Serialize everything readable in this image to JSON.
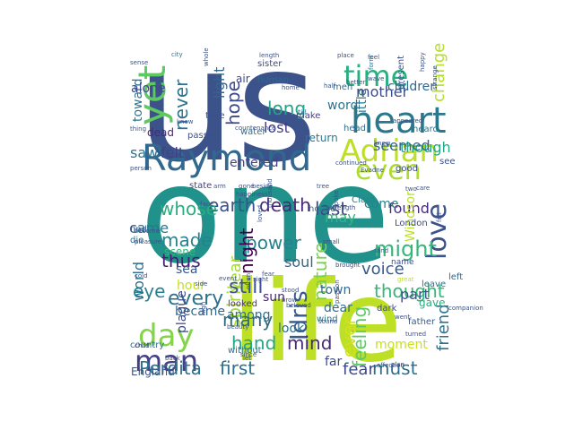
{
  "words": [
    {
      "text": "us",
      "color": "#3b528b"
    },
    {
      "text": "one",
      "color": "#21918c"
    },
    {
      "text": "life",
      "color": "#bddf26"
    },
    {
      "text": "Raymond",
      "color": "#31688e"
    },
    {
      "text": "heart",
      "color": "#2a788e"
    },
    {
      "text": "time",
      "color": "#29af7f"
    },
    {
      "text": "Adrian",
      "color": "#bddf26"
    },
    {
      "text": "even",
      "color": "#addc30"
    },
    {
      "text": "yet",
      "color": "#5ec962"
    },
    {
      "text": "love",
      "color": "#3b528b"
    },
    {
      "text": "day",
      "color": "#84d44b"
    },
    {
      "text": "man",
      "color": "#433e85"
    },
    {
      "text": "Perdita",
      "color": "#2c728e"
    },
    {
      "text": "first",
      "color": "#2c728e"
    },
    {
      "text": "death",
      "color": "#482878"
    },
    {
      "text": "earth",
      "color": "#3b528b"
    },
    {
      "text": "whose",
      "color": "#28ae80"
    },
    {
      "text": "last",
      "color": "#3e4a89"
    },
    {
      "text": "might",
      "color": "#35b779"
    },
    {
      "text": "thought",
      "color": "#35b779"
    },
    {
      "text": "hope",
      "color": "#3e4a89"
    },
    {
      "text": "long",
      "color": "#21a685"
    },
    {
      "text": "lost",
      "color": "#443983"
    },
    {
      "text": "mother",
      "color": "#3e4a89"
    },
    {
      "text": "word",
      "color": "#2c728e"
    },
    {
      "text": "never",
      "color": "#2c728e"
    },
    {
      "text": "light",
      "color": "#31688e"
    },
    {
      "text": "made",
      "color": "#26828e"
    },
    {
      "text": "thus",
      "color": "#481f70"
    },
    {
      "text": "power",
      "color": "#26828e"
    },
    {
      "text": "night",
      "color": "#440154"
    },
    {
      "text": "nature",
      "color": "#7ad151"
    },
    {
      "text": "spirit",
      "color": "#a8db34"
    },
    {
      "text": "year",
      "color": "#a8db34"
    },
    {
      "text": "still",
      "color": "#3b528b"
    },
    {
      "text": "every",
      "color": "#2c728e"
    },
    {
      "text": "eye",
      "color": "#26828e"
    },
    {
      "text": "world",
      "color": "#2c728e"
    },
    {
      "text": "Idris",
      "color": "#38598c"
    },
    {
      "text": "hand",
      "color": "#22a884"
    },
    {
      "text": "many",
      "color": "#30697e"
    },
    {
      "text": "mind",
      "color": "#482878"
    },
    {
      "text": "feeling",
      "color": "#5ec962"
    },
    {
      "text": "ever",
      "color": "#d2e21b"
    },
    {
      "text": "friend",
      "color": "#2c728e"
    },
    {
      "text": "must",
      "color": "#2e6e8e"
    },
    {
      "text": "fear",
      "color": "#3e4a89"
    },
    {
      "text": "voice",
      "color": "#38598c"
    },
    {
      "text": "part",
      "color": "#3b528b"
    },
    {
      "text": "came",
      "color": "#2a788e"
    },
    {
      "text": "saw",
      "color": "#2c728e"
    },
    {
      "text": "felt",
      "color": "#433e85"
    },
    {
      "text": "toward",
      "color": "#2c728e"
    },
    {
      "text": "alone",
      "color": "#3e4a89"
    },
    {
      "text": "children",
      "color": "#31688e"
    },
    {
      "text": "change",
      "color": "#b5de2b"
    },
    {
      "text": "though",
      "color": "#22a884"
    },
    {
      "text": "seemed",
      "color": "#31688e"
    },
    {
      "text": "little",
      "color": "#2a788e"
    },
    {
      "text": "found",
      "color": "#472d7b"
    },
    {
      "text": "come",
      "color": "#26828e"
    },
    {
      "text": "entered",
      "color": "#414487"
    },
    {
      "text": "soul",
      "color": "#31688e"
    },
    {
      "text": "sea",
      "color": "#38598c"
    },
    {
      "text": "may",
      "color": "#35b779"
    },
    {
      "text": "England",
      "color": "#3b528b"
    },
    {
      "text": "became",
      "color": "#31688e"
    },
    {
      "text": "plague",
      "color": "#3e4a89"
    },
    {
      "text": "hour",
      "color": "#c2df23"
    },
    {
      "text": "among",
      "color": "#2d708e"
    },
    {
      "text": "sun",
      "color": "#482878"
    },
    {
      "text": "look",
      "color": "#2e6e8e"
    },
    {
      "text": "far",
      "color": "#3e4a89"
    },
    {
      "text": "town",
      "color": "#31688e"
    },
    {
      "text": "dear",
      "color": "#2e6e8e"
    },
    {
      "text": "moment",
      "color": "#c8e020"
    },
    {
      "text": "gave",
      "color": "#29af7f"
    },
    {
      "text": "Windsor",
      "color": "#bddf26"
    },
    {
      "text": "scene",
      "color": "#35b779"
    },
    {
      "text": "London",
      "color": "#3e4a89"
    },
    {
      "text": "see",
      "color": "#3b528b"
    },
    {
      "text": "Clara",
      "color": "#25848e"
    },
    {
      "text": "air",
      "color": "#3e4a89"
    },
    {
      "text": "make",
      "color": "#424086"
    },
    {
      "text": "water",
      "color": "#2c728e"
    },
    {
      "text": "dead",
      "color": "#482878"
    },
    {
      "text": "passed",
      "color": "#3b528b"
    },
    {
      "text": "take",
      "color": "#3b528b"
    },
    {
      "text": "well",
      "color": "#3b528b"
    },
    {
      "text": "die",
      "color": "#2e6e8e"
    },
    {
      "text": "find",
      "color": "#3b528b"
    },
    {
      "text": "house",
      "color": "#2a788e"
    },
    {
      "text": "left",
      "color": "#31688e"
    },
    {
      "text": "looked",
      "color": "#46307e"
    },
    {
      "text": "wind",
      "color": "#2a788e"
    },
    {
      "text": "father",
      "color": "#38598c"
    },
    {
      "text": "dark",
      "color": "#3e4a89"
    },
    {
      "text": "leave",
      "color": "#2c728e"
    },
    {
      "text": "country",
      "color": "#2e6e8e"
    },
    {
      "text": "without",
      "color": "#2e6e8e"
    },
    {
      "text": "state",
      "color": "#433e85"
    },
    {
      "text": "return",
      "color": "#2a788e"
    },
    {
      "text": "good",
      "color": "#3e4a89"
    },
    {
      "text": "name",
      "color": "#3e4a89"
    },
    {
      "text": "sister",
      "color": "#3e4a89"
    },
    {
      "text": "human",
      "color": "#31688e"
    },
    {
      "text": "men",
      "color": "#2e6e8e"
    },
    {
      "text": "present",
      "color": "#3b528b"
    },
    {
      "text": "heard",
      "color": "#2c728e"
    },
    {
      "text": "head",
      "color": "#2e6e8e"
    },
    {
      "text": "city",
      "color": "#2e6e8e"
    },
    {
      "text": "length",
      "color": "#3b528b"
    },
    {
      "text": "place",
      "color": "#3b528b"
    },
    {
      "text": "feel",
      "color": "#3b528b"
    },
    {
      "text": "form",
      "color": "#2c728e"
    },
    {
      "text": "till",
      "color": "#2c728e"
    },
    {
      "text": "longer",
      "color": "#3b528b"
    },
    {
      "text": "half",
      "color": "#3b528b"
    },
    {
      "text": "better",
      "color": "#3b528b"
    },
    {
      "text": "wave",
      "color": "#3b528b"
    },
    {
      "text": "happy",
      "color": "#3b528b"
    },
    {
      "text": "strange",
      "color": "#3b528b"
    },
    {
      "text": "home",
      "color": "#3b528b"
    },
    {
      "text": "appeared",
      "color": "#3b528b"
    },
    {
      "text": "knew",
      "color": "#3b528b"
    },
    {
      "text": "care",
      "color": "#3b528b"
    },
    {
      "text": "Evadne",
      "color": "#3b528b"
    },
    {
      "text": "continued",
      "color": "#3b528b"
    },
    {
      "text": "person",
      "color": "#3b528b"
    },
    {
      "text": "become",
      "color": "#3b528b"
    },
    {
      "text": "pleasure",
      "color": "#3b528b"
    },
    {
      "text": "face",
      "color": "#3b528b"
    },
    {
      "text": "arm",
      "color": "#3b528b"
    },
    {
      "text": "gone",
      "color": "#3b528b"
    },
    {
      "text": "beside",
      "color": "#3b528b"
    },
    {
      "text": "tree",
      "color": "#3b528b"
    },
    {
      "text": "loved",
      "color": "#3b528b"
    },
    {
      "text": "thousand",
      "color": "#3b528b"
    },
    {
      "text": "strength",
      "color": "#3b528b"
    },
    {
      "text": "small",
      "color": "#3b528b"
    },
    {
      "text": "sight",
      "color": "#3b528b"
    },
    {
      "text": "fear",
      "color": "#3b528b"
    },
    {
      "text": "stood",
      "color": "#3b528b"
    },
    {
      "text": "brought",
      "color": "#3b528b"
    },
    {
      "text": "land",
      "color": "#3b528b"
    },
    {
      "text": "great",
      "color": "#bddf26"
    },
    {
      "text": "brow",
      "color": "#3b528b"
    },
    {
      "text": "beloved",
      "color": "#3b528b"
    },
    {
      "text": "cold",
      "color": "#3b528b"
    },
    {
      "text": "side",
      "color": "#3b528b"
    },
    {
      "text": "event",
      "color": "#3b528b"
    },
    {
      "text": "often",
      "color": "#3b528b"
    },
    {
      "text": "sound",
      "color": "#3b528b"
    },
    {
      "text": "passion",
      "color": "#3b528b"
    },
    {
      "text": "went",
      "color": "#3b528b"
    },
    {
      "text": "companion",
      "color": "#3b528b"
    },
    {
      "text": "turned",
      "color": "#3b528b"
    },
    {
      "text": "beauty",
      "color": "#3b528b"
    },
    {
      "text": "since",
      "color": "#3b528b"
    },
    {
      "text": "child",
      "color": "#3b528b"
    },
    {
      "text": "back",
      "color": "#3b528b"
    },
    {
      "text": "let",
      "color": "#3b528b"
    },
    {
      "text": "affection",
      "color": "#3b528b"
    },
    {
      "text": "plan",
      "color": "#3b528b"
    },
    {
      "text": "high",
      "color": "#3b528b"
    },
    {
      "text": "thing",
      "color": "#3b528b"
    },
    {
      "text": "two",
      "color": "#3b528b"
    },
    {
      "text": "full",
      "color": "#3b528b"
    },
    {
      "text": "whole",
      "color": "#3b528b"
    },
    {
      "text": "know",
      "color": "#3b528b"
    },
    {
      "text": "countenance",
      "color": "#3b528b"
    },
    {
      "text": "sense",
      "color": "#3b528b"
    },
    {
      "text": "happiness",
      "color": "#3b528b"
    },
    {
      "text": "spoke",
      "color": "#3b528b"
    },
    {
      "text": "set",
      "color": "#3b528b"
    },
    {
      "text": "soon",
      "color": "#3b528b"
    },
    {
      "text": "Lord",
      "color": "#3b528b"
    }
  ]
}
